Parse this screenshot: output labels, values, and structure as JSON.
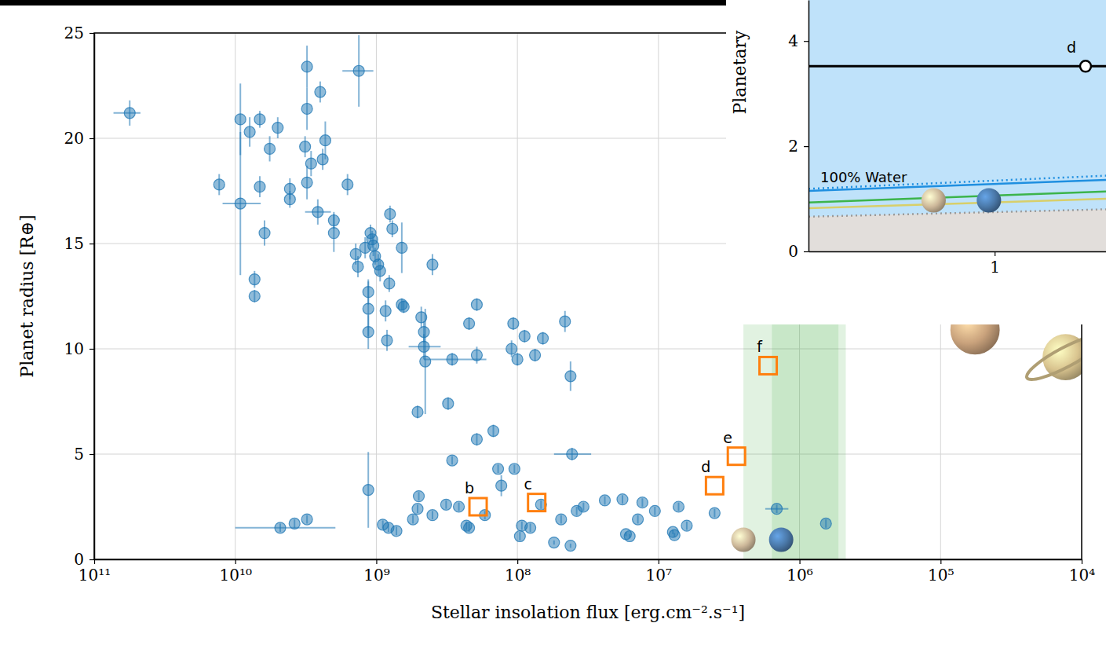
{
  "chart_data": [
    {
      "type": "scatter",
      "x_label": "Stellar insolation flux [erg.cm⁻².s⁻¹]",
      "y_label": "Planet radius [R⊕]",
      "log": "x",
      "grid": true,
      "xlim": [
        100000000000.0,
        10000.0
      ],
      "xticks": [
        {
          "value": 100000000000.0,
          "label": "10¹¹"
        },
        {
          "value": 10000000000.0,
          "label": "10¹⁰"
        },
        {
          "value": 1000000000.0,
          "label": "10⁹"
        },
        {
          "value": 100000000.0,
          "label": "10⁸"
        },
        {
          "value": 10000000.0,
          "label": "10⁷"
        },
        {
          "value": 1000000.0,
          "label": "10⁶"
        },
        {
          "value": 100000.0,
          "label": "10⁵"
        },
        {
          "value": 10000.0,
          "label": "10⁴"
        }
      ],
      "ylim": [
        0,
        25
      ],
      "yticks": [
        0,
        5,
        10,
        15,
        20,
        25
      ],
      "habitable_zone": {
        "optimistic": [
          2500000.0,
          470000.0
        ],
        "conservative": [
          1570000.0,
          530000.0
        ]
      },
      "series": [
        {
          "type": "scatter",
          "marker": "circle",
          "color": "#1f77b4",
          "x": [
            56000000000.0,
            13000000000.0,
            9200000000.0,
            9200000000.0,
            7900000000.0,
            6700000000.0,
            6700000000.0,
            7300000000.0,
            7300000000.0,
            6200000000.0,
            5700000000.0,
            5000000000.0,
            4100000000.0,
            4100000000.0,
            3200000000.0,
            3100000000.0,
            3100000000.0,
            3100000000.0,
            2900000000.0,
            2600000000.0,
            2500000000.0,
            2400000000.0,
            2300000000.0,
            2000000000.0,
            2000000000.0,
            1600000000.0,
            1400000000.0,
            1350000000.0,
            1330000000.0,
            1200000000.0,
            1140000000.0,
            1140000000.0,
            1140000000.0,
            1140000000.0,
            1100000000.0,
            1070000000.0,
            1020000000.0,
            970000000.0,
            1050000000.0,
            940000000.0,
            860000000.0,
            840000000.0,
            810000000.0,
            800000000.0,
            770000000.0,
            660000000.0,
            660000000.0,
            640000000.0,
            400000000.0,
            510000000.0,
            310000000.0,
            480000000.0,
            460000000.0,
            460000000.0,
            450000000.0,
            290000000.0,
            220000000.0,
            194000000.0,
            194000000.0,
            194000000.0,
            148000000.0,
            107000000.0,
            110000000.0,
            100000000.0,
            89000000.0,
            75000000.0,
            66000000.0,
            46000000.0,
            42000000.0,
            41000000.0,
            4800000000.0,
            3800000000.0,
            3100000000.0,
            900000000.0,
            820000000.0,
            720000000.0,
            550000000.0,
            510000000.0,
            500000000.0,
            400000000.0,
            320000000.0,
            290000000.0,
            260000000.0,
            230000000.0,
            220000000.0,
            170000000.0,
            137000000.0,
            130000000.0,
            105000000.0,
            96000000.0,
            93000000.0,
            81000000.0,
            68000000.0,
            55000000.0,
            49000000.0,
            42000000.0,
            38000000.0,
            34000000.0,
            24000000.0,
            18000000.0,
            17000000.0,
            16000000.0,
            14000000.0,
            13000000.0,
            10600000.0,
            7900000.0,
            7700000.0,
            7200000.0,
            6300000.0,
            4000000.0,
            1450000.0,
            650000.0
          ],
          "values": [
            21.2,
            17.8,
            20.9,
            16.9,
            20.3,
            20.9,
            17.7,
            13.3,
            12.5,
            15.5,
            19.5,
            20.5,
            17.6,
            17.1,
            19.6,
            23.4,
            21.4,
            17.9,
            18.8,
            16.5,
            22.2,
            19.0,
            19.9,
            16.1,
            15.5,
            17.8,
            14.5,
            13.9,
            23.2,
            14.8,
            12.7,
            11.9,
            10.8,
            3.3,
            15.5,
            15.2,
            14.4,
            14.0,
            14.9,
            13.7,
            11.8,
            10.4,
            13.1,
            16.4,
            15.7,
            14.8,
            12.1,
            12.0,
            14.0,
            7.0,
            7.4,
            11.5,
            10.8,
            10.1,
            9.4,
            9.5,
            11.2,
            12.1,
            9.7,
            5.7,
            6.1,
            11.2,
            10.0,
            9.5,
            10.6,
            9.7,
            10.5,
            11.3,
            8.7,
            5.0,
            1.5,
            1.7,
            1.9,
            1.65,
            1.5,
            1.35,
            1.9,
            2.4,
            3.0,
            2.1,
            2.6,
            4.7,
            2.5,
            1.6,
            1.5,
            2.1,
            4.3,
            3.5,
            4.3,
            1.1,
            1.6,
            1.5,
            2.6,
            0.8,
            1.9,
            0.65,
            2.3,
            2.5,
            2.8,
            2.85,
            1.2,
            1.1,
            1.9,
            2.7,
            2.3,
            1.3,
            1.15,
            2.5,
            1.6,
            2.2,
            2.4,
            1.7
          ],
          "y_err": [
            0.6,
            0.5,
            1.7,
            3.4,
            0.7,
            0.4,
            0.5,
            0.4,
            0.3,
            0.6,
            0.6,
            0.5,
            0.5,
            0.4,
            0.5,
            1.0,
            1.0,
            0.8,
            0.6,
            0.6,
            0.5,
            0.5,
            0.9,
            0.4,
            0.9,
            0.5,
            0.5,
            0.5,
            1.7,
            0.5,
            0.6,
            1.3,
            0.8,
            1.8,
            0.4,
            0.4,
            0.4,
            0.5,
            0.5,
            0.5,
            0.5,
            0.5,
            0.4,
            0.4,
            0.4,
            1.2,
            0.3,
            0.3,
            0.5,
            0.3,
            0.3,
            0.5,
            0.5,
            0.6,
            2.5,
            0.3,
            0.3,
            0.3,
            0.4,
            0.3,
            0.3,
            0.3,
            0.4,
            0.3,
            0.3,
            0.3,
            0.3,
            0.5,
            0.7,
            0.3,
            0.2,
            0.2,
            0.2,
            0.2,
            0.2,
            0.2,
            0.2,
            0.2,
            0.2,
            0.2,
            0.2,
            0.2,
            0.2,
            0.2,
            0.2,
            0.2,
            0.2,
            0.5,
            0.2,
            0.2,
            0.2,
            0.2,
            0.2,
            0.1,
            0.2,
            0.1,
            0.2,
            0.2,
            0.2,
            0.2,
            0.1,
            0.1,
            0.2,
            0.2,
            0.2,
            0.1,
            0.1,
            0.2,
            0.2,
            0.2,
            0.2,
            0.2
          ],
          "x_err": [
            [
              73000000000.0,
              47000000000.0
            ],
            null,
            null,
            [
              12300000000.0,
              6600000000.0
            ],
            null,
            null,
            null,
            null,
            null,
            null,
            null,
            null,
            null,
            null,
            null,
            null,
            null,
            null,
            null,
            [
              3200000000.0,
              2100000000.0
            ],
            null,
            null,
            null,
            null,
            null,
            null,
            null,
            null,
            [
              1740000000.0,
              1050000000.0
            ],
            null,
            null,
            null,
            null,
            null,
            null,
            null,
            null,
            null,
            null,
            null,
            null,
            null,
            null,
            null,
            null,
            null,
            null,
            null,
            null,
            null,
            null,
            null,
            null,
            [
              590000000.0,
              350000000.0
            ],
            null,
            [
              460000000.0,
              166000000.0
            ],
            null,
            null,
            null,
            null,
            null,
            null,
            null,
            null,
            null,
            null,
            null,
            null,
            null,
            [
              55000000.0,
              30000000.0
            ],
            [
              10000000000.0,
              1950000000.0
            ],
            null,
            null,
            null,
            null,
            null,
            null,
            null,
            null,
            null,
            null,
            null,
            null,
            null,
            null,
            null,
            null,
            null,
            null,
            null,
            null,
            null,
            null,
            null,
            null,
            null,
            null,
            null,
            null,
            null,
            null,
            null,
            null,
            null,
            null,
            null,
            null,
            null,
            null,
            null,
            [
              1750000.0,
              1200000.0
            ],
            null
          ]
        },
        {
          "type": "scatter",
          "marker": "square-open",
          "color": "#ff7f0e",
          "x": [
            190000000.0,
            73000000.0,
            4000000.0,
            2800000.0,
            1670000.0
          ],
          "values": [
            2.5,
            2.7,
            3.5,
            4.9,
            9.2
          ],
          "labels": [
            "b",
            "c",
            "d",
            "e",
            "f"
          ]
        },
        {
          "type": "icon",
          "marker": "planet",
          "x": [
            2500000.0,
            1350000.0,
            57000.0
          ],
          "values": [
            0.93,
            0.93,
            10.9
          ],
          "colors": [
            "#cdb89a",
            "#4a78a8",
            "#c9a27c"
          ]
        },
        {
          "type": "icon",
          "marker": "ringed-planet",
          "x": [
            13000.0
          ],
          "values": [
            9.6
          ],
          "colors": [
            "#d9c48f"
          ]
        }
      ]
    },
    {
      "type": "line",
      "y_label": "Planetary",
      "log": "x",
      "xlim": [
        0.19,
        2.7
      ],
      "xticks": [
        1
      ],
      "ylim": [
        0,
        4.78
      ],
      "yticks": [
        0,
        2,
        4
      ],
      "x": [
        0.19,
        2.7
      ],
      "series": [
        {
          "name": "100% Water",
          "type": "line",
          "color": "#1f8fe0",
          "line_style": "dotted",
          "values": [
            1.19,
            1.44
          ]
        },
        {
          "type": "line",
          "color": "#1f8fe0",
          "line_style": "solid",
          "values": [
            1.15,
            1.36
          ]
        },
        {
          "type": "line",
          "color": "#3cb44b",
          "line_style": "solid",
          "values": [
            0.93,
            1.14
          ]
        },
        {
          "type": "line",
          "color": "#d8cf6a",
          "line_style": "solid",
          "values": [
            0.82,
            1.0
          ]
        },
        {
          "type": "area",
          "color": "#9a9a9a",
          "line_style": "dotted",
          "values": [
            0.66,
            0.8
          ]
        },
        {
          "type": "line",
          "color": "#000000",
          "line_style": "solid",
          "values": [
            3.52,
            3.52
          ]
        },
        {
          "type": "scatter",
          "marker": "circle-open",
          "color": "#000000",
          "x": [
            2.25
          ],
          "values": [
            3.52
          ],
          "labels": [
            "d"
          ]
        },
        {
          "type": "icon",
          "marker": "planet",
          "x": [
            0.58,
            0.95
          ],
          "values": [
            0.97,
            0.97
          ],
          "colors": [
            "#cdb89a",
            "#4a78a8"
          ]
        }
      ]
    }
  ]
}
